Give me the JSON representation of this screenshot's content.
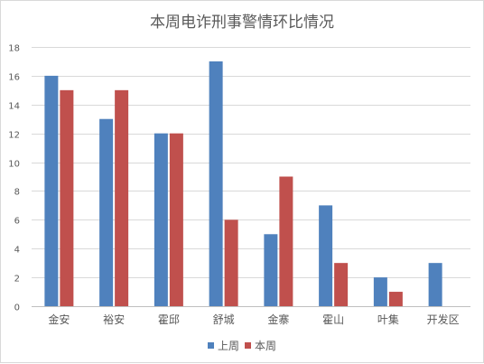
{
  "chart_data": {
    "type": "bar",
    "title": "本周电诈刑事警情环比情况",
    "categories": [
      "金安",
      "裕安",
      "霍邱",
      "舒城",
      "金寨",
      "霍山",
      "叶集",
      "开发区"
    ],
    "series": [
      {
        "name": "上周",
        "color": "#4f81bd",
        "values": [
          16,
          13,
          12,
          17,
          5,
          7,
          2,
          3
        ]
      },
      {
        "name": "本周",
        "color": "#c0504d",
        "values": [
          15,
          15,
          12,
          6,
          9,
          3,
          1,
          0
        ]
      }
    ],
    "ylim": [
      0,
      18
    ],
    "yticks": [
      0,
      2,
      4,
      6,
      8,
      10,
      12,
      14,
      16,
      18
    ],
    "grid": true,
    "legend_position": "bottom"
  }
}
